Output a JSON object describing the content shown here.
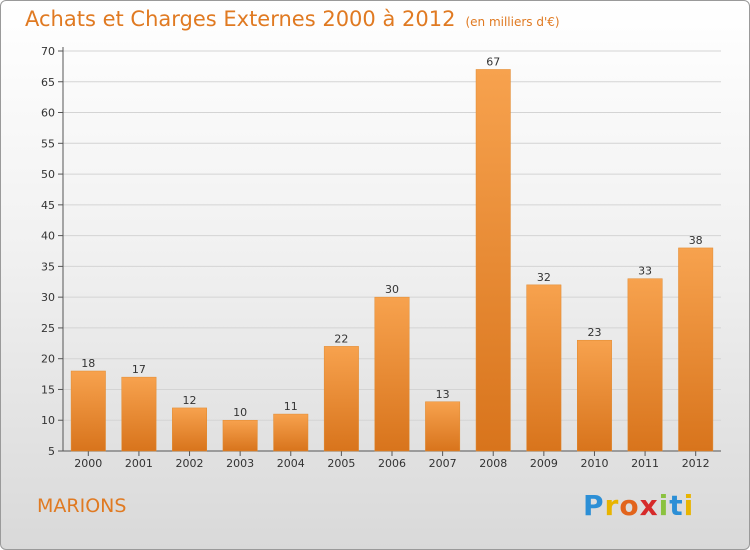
{
  "chart_data": {
    "type": "bar",
    "title": "Achats et Charges Externes 2000 à 2012",
    "subtitle": "(en milliers d'€)",
    "categories": [
      "2000",
      "2001",
      "2002",
      "2003",
      "2004",
      "2005",
      "2006",
      "2007",
      "2008",
      "2009",
      "2010",
      "2011",
      "2012"
    ],
    "values": [
      18,
      17,
      12,
      10,
      11,
      22,
      30,
      13,
      67,
      32,
      23,
      33,
      38
    ],
    "ylim": [
      5,
      70
    ],
    "yticks": [
      5,
      10,
      15,
      20,
      25,
      30,
      35,
      40,
      45,
      50,
      55,
      60,
      65,
      70
    ],
    "grid": true,
    "bar_color": "#f0902c",
    "xlabel": "",
    "ylabel": ""
  },
  "footer": {
    "commune": "MARIONS",
    "logo_letters": [
      "P",
      "r",
      "o",
      "x",
      "i",
      "t",
      "i"
    ]
  }
}
